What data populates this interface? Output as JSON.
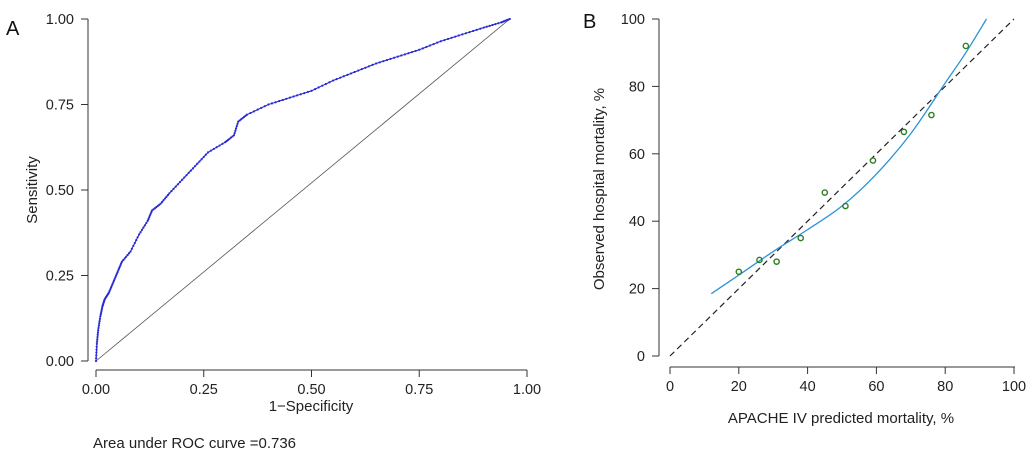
{
  "chart_data": [
    {
      "panel": "A",
      "type": "line",
      "xlabel": "1−Specificity",
      "ylabel": "Sensitivity",
      "xlim": [
        0,
        1
      ],
      "ylim": [
        0,
        1
      ],
      "xticks": [
        "0.00",
        "0.25",
        "0.50",
        "0.75",
        "1.00"
      ],
      "yticks": [
        "0.00",
        "0.25",
        "0.50",
        "0.75",
        "1.00"
      ],
      "annotation": "Area under ROC curve =0.736",
      "colors": {
        "roc": "#2a2ad4",
        "reference": "#555555"
      },
      "series": [
        {
          "values": [
            [
              0.0,
              0.0
            ],
            [
              0.002,
              0.05
            ],
            [
              0.005,
              0.09
            ],
            [
              0.01,
              0.13
            ],
            [
              0.015,
              0.16
            ],
            [
              0.02,
              0.18
            ],
            [
              0.03,
              0.2
            ],
            [
              0.04,
              0.23
            ],
            [
              0.05,
              0.26
            ],
            [
              0.06,
              0.29
            ],
            [
              0.08,
              0.32
            ],
            [
              0.1,
              0.37
            ],
            [
              0.12,
              0.41
            ],
            [
              0.13,
              0.44
            ],
            [
              0.15,
              0.46
            ],
            [
              0.17,
              0.49
            ],
            [
              0.2,
              0.53
            ],
            [
              0.23,
              0.57
            ],
            [
              0.26,
              0.61
            ],
            [
              0.3,
              0.64
            ],
            [
              0.32,
              0.66
            ],
            [
              0.33,
              0.7
            ],
            [
              0.35,
              0.72
            ],
            [
              0.4,
              0.75
            ],
            [
              0.45,
              0.77
            ],
            [
              0.5,
              0.79
            ],
            [
              0.55,
              0.82
            ],
            [
              0.6,
              0.845
            ],
            [
              0.65,
              0.87
            ],
            [
              0.7,
              0.89
            ],
            [
              0.75,
              0.91
            ],
            [
              0.8,
              0.935
            ],
            [
              0.85,
              0.955
            ],
            [
              0.9,
              0.975
            ],
            [
              0.94,
              0.99
            ],
            [
              0.96,
              1.0
            ]
          ]
        },
        {
          "values": [
            [
              0.0,
              0.0
            ],
            [
              0.96,
              1.0
            ]
          ]
        }
      ]
    },
    {
      "panel": "B",
      "type": "scatter",
      "xlabel": "APACHE IV predicted mortality, %",
      "ylabel": "Observed hospital mortality, %",
      "xlim": [
        0,
        100
      ],
      "ylim": [
        0,
        100
      ],
      "xticks": [
        "0",
        "20",
        "40",
        "60",
        "80",
        "100"
      ],
      "yticks": [
        "0",
        "20",
        "40",
        "60",
        "80",
        "100"
      ],
      "colors": {
        "points": "#2e7d1f",
        "fit": "#2a93d5",
        "reference": "#222222"
      },
      "points": [
        [
          20,
          25
        ],
        [
          26,
          28.5
        ],
        [
          31,
          28
        ],
        [
          38,
          35
        ],
        [
          45,
          48.5
        ],
        [
          51,
          44.5
        ],
        [
          59,
          58
        ],
        [
          68,
          66.5
        ],
        [
          76,
          71.5
        ],
        [
          86,
          92
        ]
      ],
      "fit": [
        [
          12,
          18.5
        ],
        [
          20,
          24
        ],
        [
          30,
          31
        ],
        [
          40,
          37.5
        ],
        [
          50,
          44.5
        ],
        [
          60,
          54
        ],
        [
          70,
          66
        ],
        [
          80,
          81
        ],
        [
          86,
          90
        ],
        [
          92,
          100
        ]
      ],
      "reference": [
        [
          0,
          0
        ],
        [
          100,
          100
        ]
      ]
    }
  ]
}
